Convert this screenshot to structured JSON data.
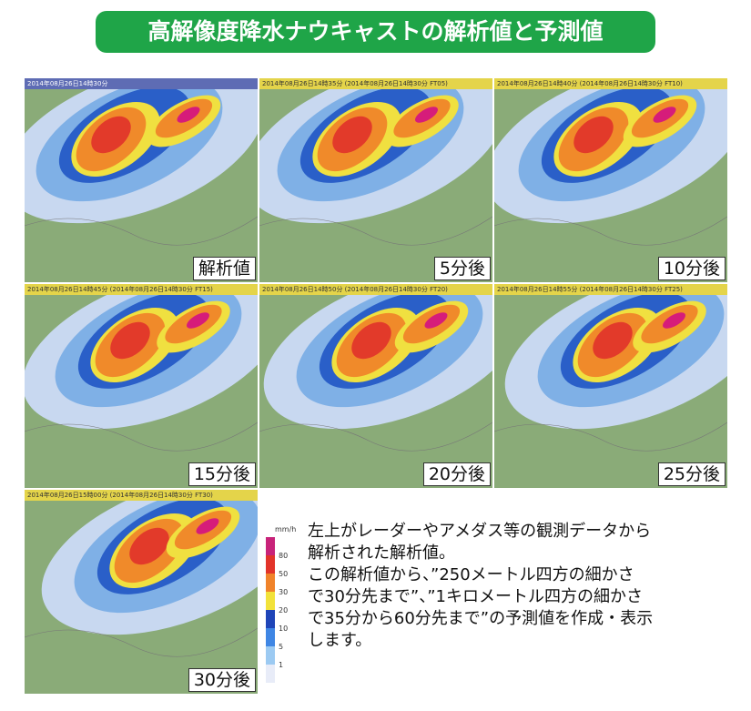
{
  "header": {
    "title": "高解像度降水ナウキャストの解析値と予測値"
  },
  "panels": [
    {
      "header": "2014年08月26日14時30分",
      "label": "解析値"
    },
    {
      "header": "2014年08月26日14時35分 (2014年08月26日14時30分 FT05)",
      "label": "5分後"
    },
    {
      "header": "2014年08月26日14時40分 (2014年08月26日14時30分 FT10)",
      "label": "10分後"
    },
    {
      "header": "2014年08月26日14時45分 (2014年08月26日14時30分 FT15)",
      "label": "15分後"
    },
    {
      "header": "2014年08月26日14時50分 (2014年08月26日14時30分 FT20)",
      "label": "20分後"
    },
    {
      "header": "2014年08月26日14時55分 (2014年08月26日14時30分 FT25)",
      "label": "25分後"
    },
    {
      "header": "2014年08月26日15時00分 (2014年08月26日14時30分 FT30)",
      "label": "30分後"
    }
  ],
  "legend": {
    "unit": "mm/h",
    "ticks": [
      "80",
      "50",
      "30",
      "20",
      "10",
      "5",
      "1"
    ]
  },
  "description": {
    "lines": [
      "左上がレーダーやアメダス等の観測データから",
      "解析された解析値。",
      "この解析値から、”250メートル四方の細かさ",
      "で30分先まで”、”1キロメートル四方の細かさ",
      "で35分から60分先まで”の予測値を作成・表示",
      "します。"
    ]
  }
}
